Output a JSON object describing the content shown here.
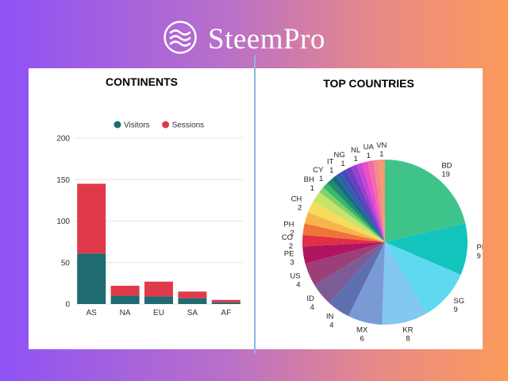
{
  "brand": {
    "name": "SteemPro",
    "logo_icon": "waves-logo-icon",
    "color": "#ffffff"
  },
  "chart_data": [
    {
      "type": "bar",
      "stacked": true,
      "title": "CONTINENTS",
      "categories": [
        "AS",
        "NA",
        "EU",
        "SA",
        "AF"
      ],
      "series": [
        {
          "name": "Visitors",
          "values": [
            61,
            10,
            9,
            7,
            2
          ],
          "color": "#1f6b72"
        },
        {
          "name": "Sessions",
          "values": [
            84,
            12,
            18,
            8,
            3
          ],
          "color": "#e03a4a"
        }
      ],
      "ylim": [
        0,
        200
      ],
      "yticks": [
        0,
        50,
        100,
        150,
        200
      ],
      "grid": true,
      "legend": "top"
    },
    {
      "type": "pie",
      "title": "TOP COUNTRIES",
      "slices": [
        {
          "label": "BD",
          "value": 19,
          "color": "#3ec48a"
        },
        {
          "label": "PK",
          "value": 9,
          "color": "#12c4bb"
        },
        {
          "label": "SG",
          "value": 9,
          "color": "#5ed9ef"
        },
        {
          "label": "KR",
          "value": 8,
          "color": "#82c8f0"
        },
        {
          "label": "MX",
          "value": 6,
          "color": "#7a9ad6"
        },
        {
          "label": "IN",
          "value": 4,
          "color": "#5e6fb0"
        },
        {
          "label": "ID",
          "value": 4,
          "color": "#7b5c96"
        },
        {
          "label": "US",
          "value": 4,
          "color": "#9c3f78"
        },
        {
          "label": "PE",
          "value": 3,
          "color": "#b0145e"
        },
        {
          "label": "CO",
          "value": 2,
          "color": "#e02f46"
        },
        {
          "label": "PH",
          "value": 2,
          "color": "#f0733a"
        },
        {
          "label": "",
          "value": 2,
          "color": "#f9b54a"
        },
        {
          "label": "CH",
          "value": 2,
          "color": "#f7dc5c"
        },
        {
          "label": "",
          "value": 2,
          "color": "#c9e26a"
        },
        {
          "label": "BH",
          "value": 1,
          "color": "#7ed36a"
        },
        {
          "label": "",
          "value": 1,
          "color": "#39b86a"
        },
        {
          "label": "CY",
          "value": 1,
          "color": "#1e8c6c"
        },
        {
          "label": "",
          "value": 1,
          "color": "#176a84"
        },
        {
          "label": "IT",
          "value": 1,
          "color": "#2f5fa8"
        },
        {
          "label": "",
          "value": 1,
          "color": "#4848b8"
        },
        {
          "label": "NG",
          "value": 1,
          "color": "#6a40bc"
        },
        {
          "label": "",
          "value": 1,
          "color": "#9a3fd0"
        },
        {
          "label": "NL",
          "value": 1,
          "color": "#c646d8"
        },
        {
          "label": "",
          "value": 1,
          "color": "#ec4fc4"
        },
        {
          "label": "UA",
          "value": 1,
          "color": "#f66aa8"
        },
        {
          "label": "",
          "value": 1,
          "color": "#f28c8c"
        },
        {
          "label": "VN",
          "value": 1,
          "color": "#f39c6b"
        }
      ]
    }
  ]
}
